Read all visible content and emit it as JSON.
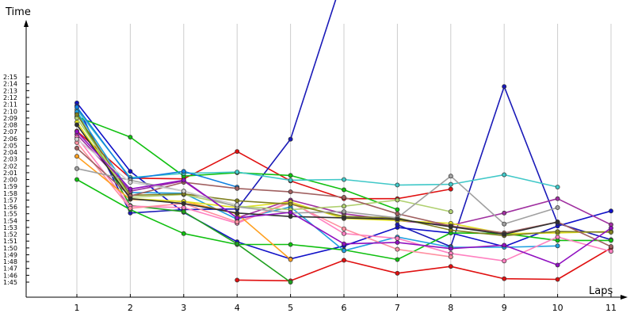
{
  "chart_data": {
    "type": "line",
    "ylabel": "Time",
    "xlabel": "Laps",
    "x": [
      1,
      2,
      3,
      4,
      5,
      6,
      7,
      8,
      9,
      10,
      11
    ],
    "x_tick_labels": [
      "1",
      "2",
      "3",
      "4",
      "5",
      "6",
      "7",
      "8",
      "9",
      "10",
      "11"
    ],
    "y_tick_labels": [
      "1:45",
      "1:46",
      "1:47",
      "1:48",
      "1:49",
      "1:50",
      "1:51",
      "1:52",
      "1:53",
      "1:54",
      "1:55",
      "1:56",
      "1:57",
      "1:58",
      "1:59",
      "2:00",
      "2:01",
      "2:02",
      "2:03",
      "2:04",
      "2:05",
      "2:06",
      "2:07",
      "2:08",
      "2:09",
      "2:10",
      "2:11",
      "2:12",
      "2:13",
      "2:14",
      "2:15"
    ],
    "ylim_seconds": [
      105,
      135
    ],
    "grid": true,
    "series": [
      {
        "color": "#e01010",
        "values": [
          127.1,
          120.2,
          120.1,
          124.1,
          119.8,
          117.2,
          117.2,
          118.6,
          null,
          null,
          null
        ]
      },
      {
        "color": "#e01010",
        "values": [
          null,
          null,
          null,
          105.3,
          105.2,
          108.2,
          106.3,
          107.3,
          105.5,
          105.4,
          110.0
        ]
      },
      {
        "color": "#1010c8",
        "values": [
          131.2,
          121.2,
          115.2,
          110.9,
          108.4,
          110.3,
          113.0,
          112.2,
          110.2,
          113.2,
          115.4
        ]
      },
      {
        "color": "#1a1ab8",
        "values": [
          130.8,
          115.1,
          115.6,
          115.7,
          125.9,
          150.0,
          null,
          null,
          null,
          null,
          null
        ]
      },
      {
        "color": "#1a1ab8",
        "values": [
          null,
          null,
          null,
          null,
          null,
          null,
          113.4,
          110.2,
          133.6,
          113.6,
          111.2
        ]
      },
      {
        "color": "#10c010",
        "values": [
          129.2,
          126.2,
          120.5,
          121.0,
          120.6,
          118.5,
          115.6,
          null,
          null,
          null,
          null
        ]
      },
      {
        "color": "#10c010",
        "values": [
          120.0,
          115.6,
          112.1,
          110.5,
          110.5,
          109.7,
          108.3,
          112.2,
          112.1,
          111.1,
          111.1
        ]
      },
      {
        "color": "#20a020",
        "values": [
          129.7,
          116.2,
          115.3,
          110.6,
          105.0,
          null,
          null,
          null,
          null,
          null,
          null
        ]
      },
      {
        "color": "#40c8c8",
        "values": [
          130.2,
          120.3,
          120.9,
          121.1,
          119.9,
          120.0,
          119.2,
          119.3,
          120.7,
          118.9,
          null
        ]
      },
      {
        "color": "#1080e0",
        "values": [
          130.6,
          120.1,
          121.2,
          118.9,
          null,
          null,
          null,
          null,
          null,
          null,
          null
        ]
      },
      {
        "color": "#20a0e0",
        "values": [
          129.9,
          118.1,
          118.0,
          114.2,
          116.0,
          109.6,
          111.6,
          110.1,
          110.1,
          110.3,
          null
        ]
      },
      {
        "color": "#a030a0",
        "values": [
          126.6,
          118.3,
          119.8,
          114.4,
          117.0,
          115.0,
          114.0,
          113.3,
          115.1,
          117.2,
          113.4
        ]
      },
      {
        "color": "#ff80c0",
        "values": [
          126.2,
          116.1,
          115.9,
          113.6,
          116.8,
          112.1,
          111.4,
          109.2,
          108.1,
          111.6,
          109.5
        ]
      },
      {
        "color": "#ff90a0",
        "values": [
          125.4,
          115.8,
          116.5,
          113.8,
          116.6,
          112.8,
          109.8,
          108.7,
          null,
          null,
          null
        ]
      },
      {
        "color": "#ffa020",
        "values": [
          123.4,
          117.1,
          116.8,
          115.0,
          108.3,
          null,
          null,
          null,
          null,
          null,
          null
        ]
      },
      {
        "color": "#e0e020",
        "values": [
          128.4,
          117.2,
          116.8,
          115.9,
          116.7,
          114.3,
          114.0,
          113.6,
          112.1,
          112.2,
          112.4
        ]
      },
      {
        "color": "#b0d070",
        "values": [
          129.0,
          117.4,
          117.8,
          116.1,
          115.6,
          116.1,
          117.0,
          115.3,
          null,
          null,
          null
        ]
      },
      {
        "color": "#808020",
        "values": [
          129.5,
          117.7,
          117.9,
          116.9,
          116.4,
          114.6,
          114.4,
          112.6,
          111.8,
          112.4,
          112.3
        ]
      },
      {
        "color": "#a06060",
        "values": [
          124.6,
          117.6,
          119.6,
          118.7,
          118.2,
          117.4,
          115.0,
          113.2,
          112.2,
          113.8,
          110.2
        ]
      },
      {
        "color": "#a0a0a0",
        "values": [
          121.6,
          119.9,
          118.3,
          116.0,
          115.1,
          115.3,
          114.4,
          120.5,
          113.5,
          115.9,
          null
        ]
      },
      {
        "color": "#d0d0d0",
        "values": [
          125.9,
          119.6,
          118.3,
          116.3,
          null,
          null,
          null,
          null,
          null,
          null,
          null
        ]
      },
      {
        "color": "#303030",
        "values": [
          128.0,
          117.2,
          116.5,
          115.1,
          114.6,
          114.4,
          114.2,
          113.1,
          112.0,
          113.8,
          null
        ]
      },
      {
        "color": "#9010c0",
        "values": [
          127.0,
          118.6,
          119.9,
          114.4,
          115.2,
          110.6,
          110.8,
          109.9,
          110.4,
          107.5,
          112.9
        ]
      }
    ]
  }
}
